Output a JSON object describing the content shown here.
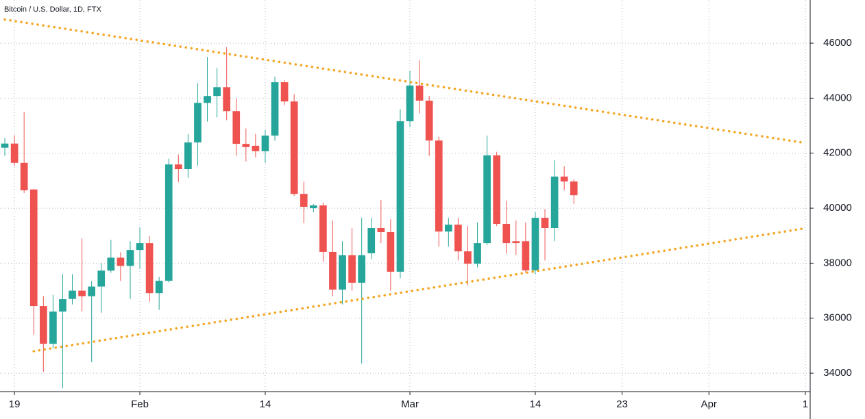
{
  "chart_data": {
    "type": "candlestick",
    "title": "Bitcoin / U.S. Dollar, 1D, FTX",
    "categories": [
      null,
      "19",
      null,
      null,
      null,
      null,
      null,
      null,
      null,
      null,
      null,
      null,
      null,
      null,
      "Feb",
      null,
      null,
      null,
      null,
      null,
      null,
      null,
      null,
      null,
      null,
      null,
      null,
      "14",
      null,
      null,
      null,
      null,
      null,
      null,
      null,
      null,
      null,
      null,
      null,
      null,
      null,
      null,
      "Mar",
      null,
      null,
      null,
      null,
      null,
      null,
      null,
      null,
      null,
      null,
      null,
      null,
      "14",
      null,
      null,
      null,
      null,
      null,
      null,
      null,
      null,
      "23",
      null,
      null,
      null,
      null,
      null,
      null,
      null,
      null,
      "Apr",
      null,
      null,
      null,
      null,
      null,
      null,
      null,
      null,
      null,
      "1"
    ],
    "open": [
      42200,
      42350,
      41650,
      40680,
      36440,
      35070,
      36240,
      36700,
      37000,
      36800,
      37150,
      37730,
      38200,
      37900,
      38480,
      38730,
      36910,
      37360,
      41590,
      41420,
      42390,
      43830,
      44080,
      44400,
      43530,
      42340,
      42270,
      42070,
      42640,
      44580,
      43880,
      40520,
      40000,
      40100,
      38410,
      37040,
      38290,
      37290,
      38360,
      39280,
      39130,
      37690,
      43160,
      44460,
      43910,
      42460,
      39150,
      39400,
      38430,
      37980,
      38730,
      41920,
      39430,
      38800,
      38800,
      37740,
      39650,
      39280,
      41150,
      40970,
      null,
      null,
      null,
      null,
      null,
      null,
      null,
      null,
      null,
      null,
      null,
      null,
      null,
      null,
      null,
      null,
      null,
      null,
      null,
      null,
      null,
      null,
      null,
      null
    ],
    "high": [
      42550,
      42650,
      43500,
      40700,
      36800,
      36850,
      37600,
      37600,
      38900,
      37350,
      38000,
      38850,
      38400,
      38800,
      39300,
      38980,
      37500,
      41800,
      41950,
      42700,
      44550,
      45500,
      45100,
      45850,
      44000,
      42900,
      42700,
      42850,
      44780,
      44650,
      44150,
      40970,
      40150,
      40200,
      39550,
      38800,
      39270,
      39650,
      39650,
      40300,
      39600,
      43600,
      45000,
      45380,
      44080,
      42600,
      39650,
      39650,
      39350,
      39480,
      42640,
      42050,
      40270,
      39550,
      39480,
      39850,
      39970,
      41740,
      41520,
      41050,
      null,
      null,
      null,
      null,
      null,
      null,
      null,
      null,
      null,
      null,
      null,
      null,
      null,
      null,
      null,
      null,
      null,
      null,
      null,
      null,
      null,
      null,
      null,
      null
    ],
    "low": [
      41900,
      41550,
      40550,
      35400,
      34050,
      34900,
      33450,
      36500,
      36250,
      34400,
      36200,
      37650,
      37350,
      36700,
      37800,
      36600,
      36300,
      37300,
      40950,
      41100,
      41550,
      43150,
      43300,
      43200,
      41900,
      41700,
      41850,
      41650,
      42450,
      43750,
      40450,
      39450,
      39850,
      38050,
      36800,
      36500,
      37000,
      34350,
      38150,
      38730,
      37000,
      37450,
      42950,
      43450,
      41900,
      38600,
      38600,
      38100,
      37200,
      37850,
      38650,
      39350,
      38350,
      38300,
      37650,
      37600,
      38100,
      38800,
      40650,
      40150,
      null,
      null,
      null,
      null,
      null,
      null,
      null,
      null,
      null,
      null,
      null,
      null,
      null,
      null,
      null,
      null,
      null,
      null,
      null,
      null,
      null,
      null,
      null,
      null
    ],
    "close": [
      42350,
      41650,
      40650,
      36440,
      35070,
      36240,
      36690,
      37000,
      36800,
      37150,
      37730,
      38200,
      37900,
      38480,
      38730,
      36910,
      37360,
      41590,
      41420,
      42390,
      43830,
      44080,
      44400,
      43530,
      42340,
      42220,
      42070,
      42640,
      44580,
      43880,
      40520,
      40050,
      40100,
      38410,
      37040,
      38290,
      37290,
      38290,
      39280,
      39130,
      37690,
      43160,
      44460,
      43910,
      42460,
      39150,
      39400,
      38430,
      37980,
      38730,
      41920,
      39430,
      38730,
      38730,
      37740,
      39650,
      39280,
      41150,
      40970,
      40470,
      null,
      null,
      null,
      null,
      null,
      null,
      null,
      null,
      null,
      null,
      null,
      null,
      null,
      null,
      null,
      null,
      null,
      null,
      null,
      null,
      null,
      null,
      null,
      null
    ],
    "up_color": "#26a69a",
    "down_color": "#ef5350",
    "ylim": [
      33330,
      47570
    ],
    "yticks": [
      34000,
      36000,
      38000,
      40000,
      42000,
      44000,
      46000
    ],
    "grid": true,
    "trendlines": [
      {
        "color": "#f5a623",
        "start": {
          "category": 0,
          "value": 46860
        },
        "end": {
          "category": 83,
          "value": 42370
        }
      },
      {
        "color": "#f5a623",
        "start": {
          "category": 3,
          "value": 34800
        },
        "end": {
          "category": 83,
          "value": 39270
        }
      }
    ]
  }
}
